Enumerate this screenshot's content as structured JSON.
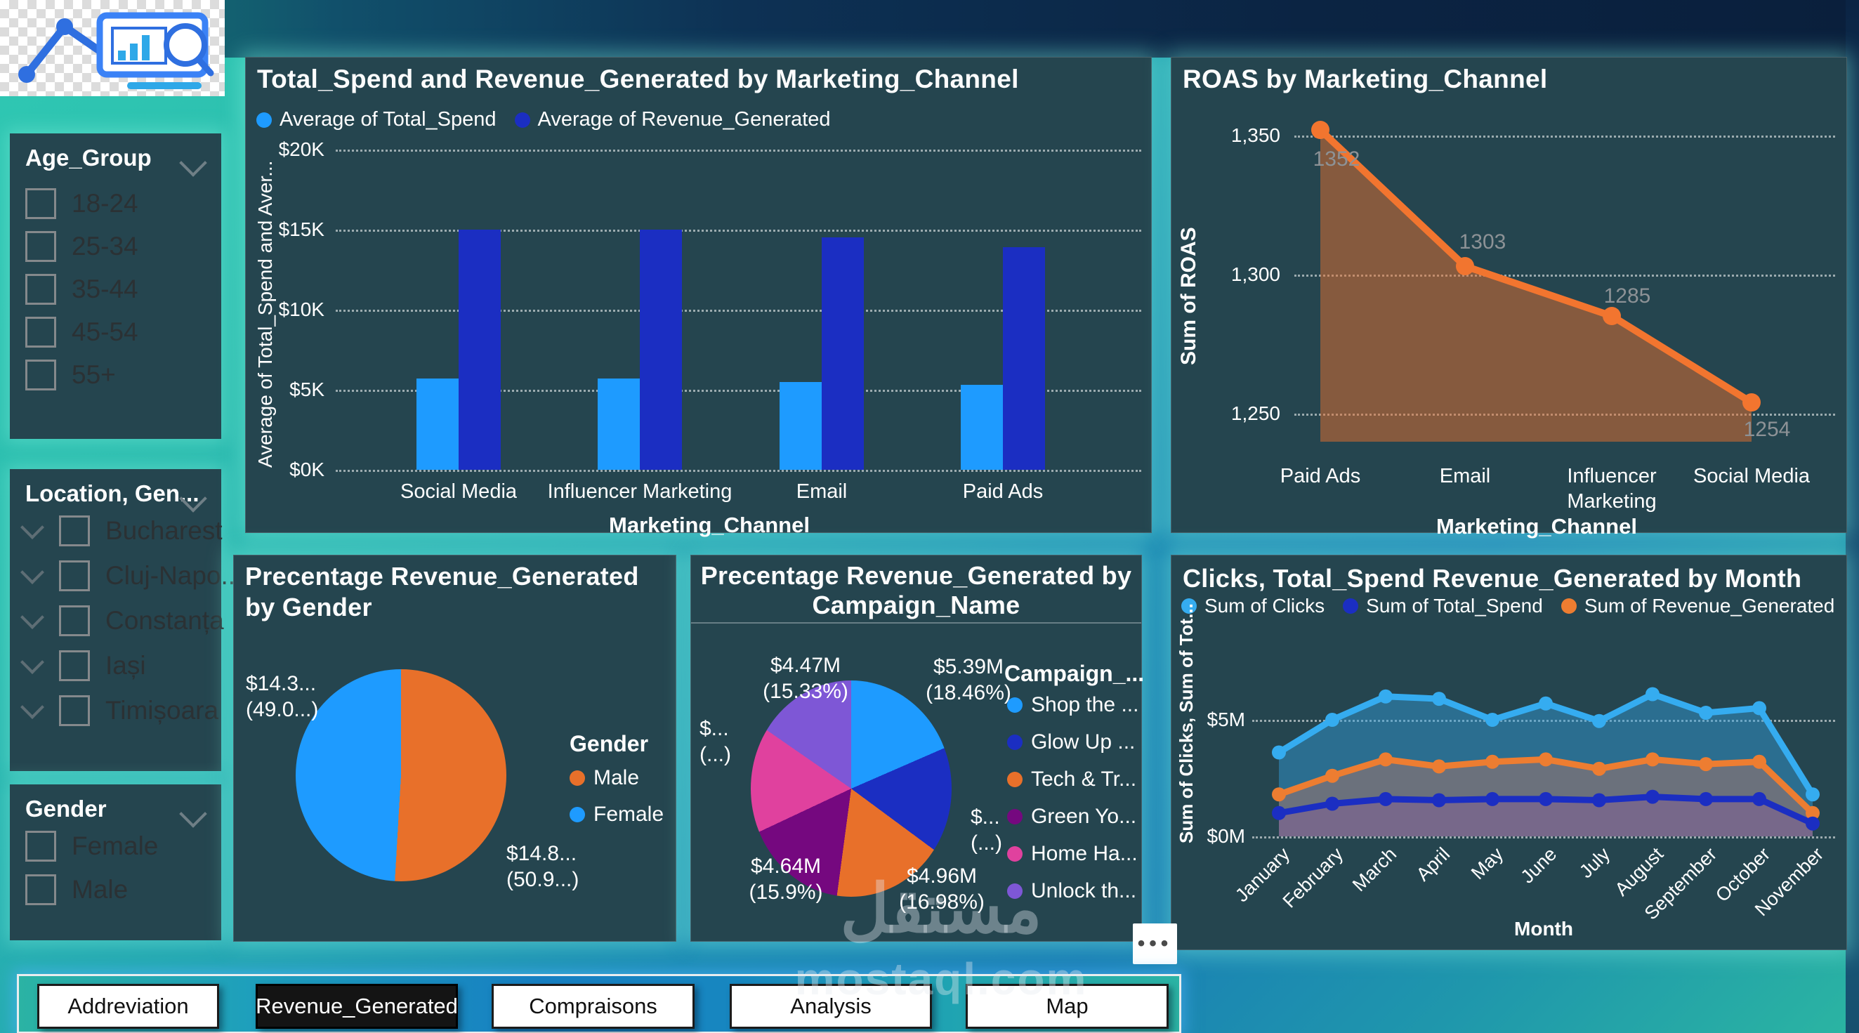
{
  "logo": {
    "name": "analytics-logo"
  },
  "filters": {
    "age_group": {
      "title": "Age_Group",
      "items": [
        "18-24",
        "25-34",
        "35-44",
        "45-54",
        "55+"
      ]
    },
    "location": {
      "title": "Location, Gen...",
      "items": [
        "Bucharest",
        "Cluj-Napo...",
        "Constanța",
        "Iași",
        "Timișoara"
      ]
    },
    "gender": {
      "title": "Gender",
      "items": [
        "Female",
        "Male"
      ]
    }
  },
  "chart_data": {
    "bar": {
      "type": "bar",
      "title": "Total_Spend and Revenue_Generated by Marketing_Channel",
      "categories": [
        "Social Media",
        "Influencer Marketing",
        "Email",
        "Paid Ads"
      ],
      "series": [
        {
          "name": "Average of Total_Spend",
          "color": "#1E9BFF",
          "values": [
            5700,
            5700,
            5500,
            5300
          ]
        },
        {
          "name": "Average of Revenue_Generated",
          "color": "#1B2EC2",
          "values": [
            15000,
            15000,
            14500,
            13900
          ]
        }
      ],
      "yticks": [
        "$0K",
        "$5K",
        "$10K",
        "$15K",
        "$20K"
      ],
      "ymax": 20000,
      "ylabel": "Average of Total_Spend and Aver...",
      "xlabel": "Marketing_Channel"
    },
    "roas": {
      "type": "area",
      "title": "ROAS by Marketing_Channel",
      "categories": [
        "Paid Ads",
        "Email",
        "Influencer Marketing",
        "Social Media"
      ],
      "values": [
        1352,
        1303,
        1285,
        1254
      ],
      "data_labels": [
        "1352",
        "1303",
        "1285",
        "1254"
      ],
      "yticks": [
        "1,250",
        "1,300",
        "1,350"
      ],
      "line_color": "#F2752F",
      "fill_color": "rgba(232,112,45,0.5)",
      "ylabel": "Sum of ROAS",
      "xlabel": "Marketing_Channel"
    },
    "gender_pie": {
      "type": "pie",
      "title": "Precentage Revenue_Generated by Gender",
      "legend_title": "Gender",
      "slices": [
        {
          "name": "Male",
          "color": "#E8702A",
          "pct": 50.93,
          "label_line1": "$14.8...",
          "label_line2": "(50.9...)"
        },
        {
          "name": "Female",
          "color": "#1E9BFF",
          "pct": 49.07,
          "label_line1": "$14.3...",
          "label_line2": "(49.0...)"
        }
      ]
    },
    "campaign_pie": {
      "type": "pie",
      "title_line1": "Precentage Revenue_Generated by",
      "title_line2": "Campaign_Name",
      "legend_title": "Campaign_...",
      "slices": [
        {
          "name": "Shop the ...",
          "color": "#1E9BFF",
          "pct": 18.46,
          "label_line1": "$5.39M",
          "label_line2": "(18.46%)"
        },
        {
          "name": "Glow Up ...",
          "color": "#1B2EC2",
          "pct": 16.67,
          "label_line1": "$...",
          "label_line2": "(...)"
        },
        {
          "name": "Tech & Tr...",
          "color": "#E8702A",
          "pct": 16.98,
          "label_line1": "$4.96M",
          "label_line2": "(16.98%)"
        },
        {
          "name": "Green Yo...",
          "color": "#75087F",
          "pct": 15.9,
          "label_line1": "$4.64M",
          "label_line2": "(15.9%)"
        },
        {
          "name": "Home Ha...",
          "color": "#E0419E",
          "pct": 16.63,
          "label_line1": "$...",
          "label_line2": "(...)"
        },
        {
          "name": "Unlock th...",
          "color": "#7E57D6",
          "pct": 15.33,
          "label_line1": "$4.47M",
          "label_line2": "(15.33%)"
        }
      ]
    },
    "line": {
      "type": "area",
      "title": "Clicks, Total_Spend Revenue_Generated by Month",
      "months": [
        "January",
        "February",
        "March",
        "April",
        "May",
        "June",
        "July",
        "August",
        "September",
        "October",
        "November"
      ],
      "series": [
        {
          "name": "Sum of Clicks",
          "color": "#35ACF0",
          "fill": "rgba(52,160,225,0.45)",
          "values_m": [
            3.6,
            5.0,
            6.0,
            5.9,
            5.0,
            5.7,
            4.95,
            6.1,
            5.3,
            5.5,
            1.8
          ]
        },
        {
          "name": "Sum of Total_Spend",
          "color": "#1B2EC2",
          "fill": "rgba(140,90,160,0.38)",
          "values_m": [
            1.0,
            1.4,
            1.6,
            1.55,
            1.6,
            1.6,
            1.55,
            1.7,
            1.6,
            1.6,
            0.55
          ]
        },
        {
          "name": "Sum of Revenue_Generated",
          "color": "#ED7D31",
          "fill": "rgba(225,120,90,0.35)",
          "values_m": [
            1.8,
            2.6,
            3.3,
            3.0,
            3.2,
            3.3,
            2.9,
            3.3,
            3.1,
            3.2,
            1.0
          ]
        }
      ],
      "yticks": [
        "$0M",
        "$5M"
      ],
      "ylabel": "Sum of Clicks, Sum of Tot...",
      "xlabel": "Month"
    }
  },
  "nav": {
    "buttons": [
      {
        "label": "Addreviation",
        "active": false
      },
      {
        "label": "Revenue_Generated",
        "active": true
      },
      {
        "label": "Compraisons",
        "active": false
      },
      {
        "label": "Analysis",
        "active": false
      },
      {
        "label": "Map",
        "active": false
      }
    ]
  },
  "more_options_icon": "•••",
  "watermark": {
    "main": "مستقل",
    "sub": "mostaql.com"
  }
}
